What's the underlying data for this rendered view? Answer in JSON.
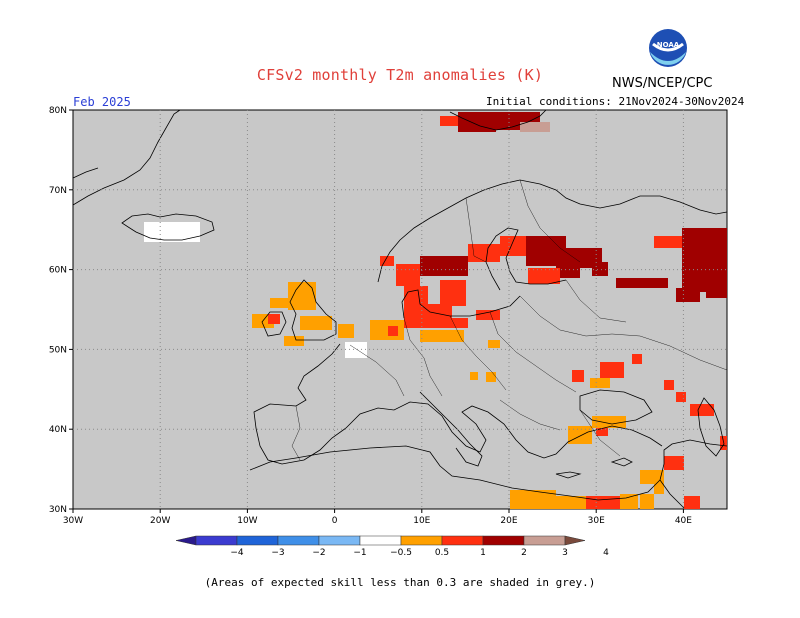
{
  "header": {
    "title": "CFSv2 monthly T2m anomalies (K)",
    "agency": "NWS/NCEP/CPC",
    "logo_text": "NOAA",
    "month": "Feb 2025",
    "init_conditions": "Initial conditions: 21Nov2024-30Nov2024"
  },
  "map": {
    "lon_range": [
      -30,
      45
    ],
    "lat_range": [
      30,
      80
    ],
    "lat_ticks": [
      "30N",
      "40N",
      "50N",
      "60N",
      "70N",
      "80N"
    ],
    "lon_ticks": [
      "30W",
      "20W",
      "10W",
      "0",
      "10E",
      "20E",
      "30E",
      "40E"
    ],
    "colors": {
      "ocean_land_grey": "#c8c8c8",
      "white": "#ffffff",
      "orange": "#ffa000",
      "red": "#ff3010",
      "dark_red": "#a00000",
      "pink": "#c89e94",
      "coast": "#000000",
      "grid": "#8a8a8a"
    }
  },
  "colorbar": {
    "labels": [
      "−4",
      "−3",
      "−2",
      "−1",
      "−0.5",
      "0.5",
      "1",
      "2",
      "3",
      "4"
    ],
    "colors": [
      "#2a1a8c",
      "#3b3bd0",
      "#1f64d8",
      "#3f8fe8",
      "#7ab8f4",
      "#ffffff",
      "#ffa000",
      "#ff3010",
      "#a00000",
      "#c89e94",
      "#7a4a3c"
    ]
  },
  "footer": {
    "note": "(Areas of expected skill less than 0.3 are shaded in grey.)"
  }
}
